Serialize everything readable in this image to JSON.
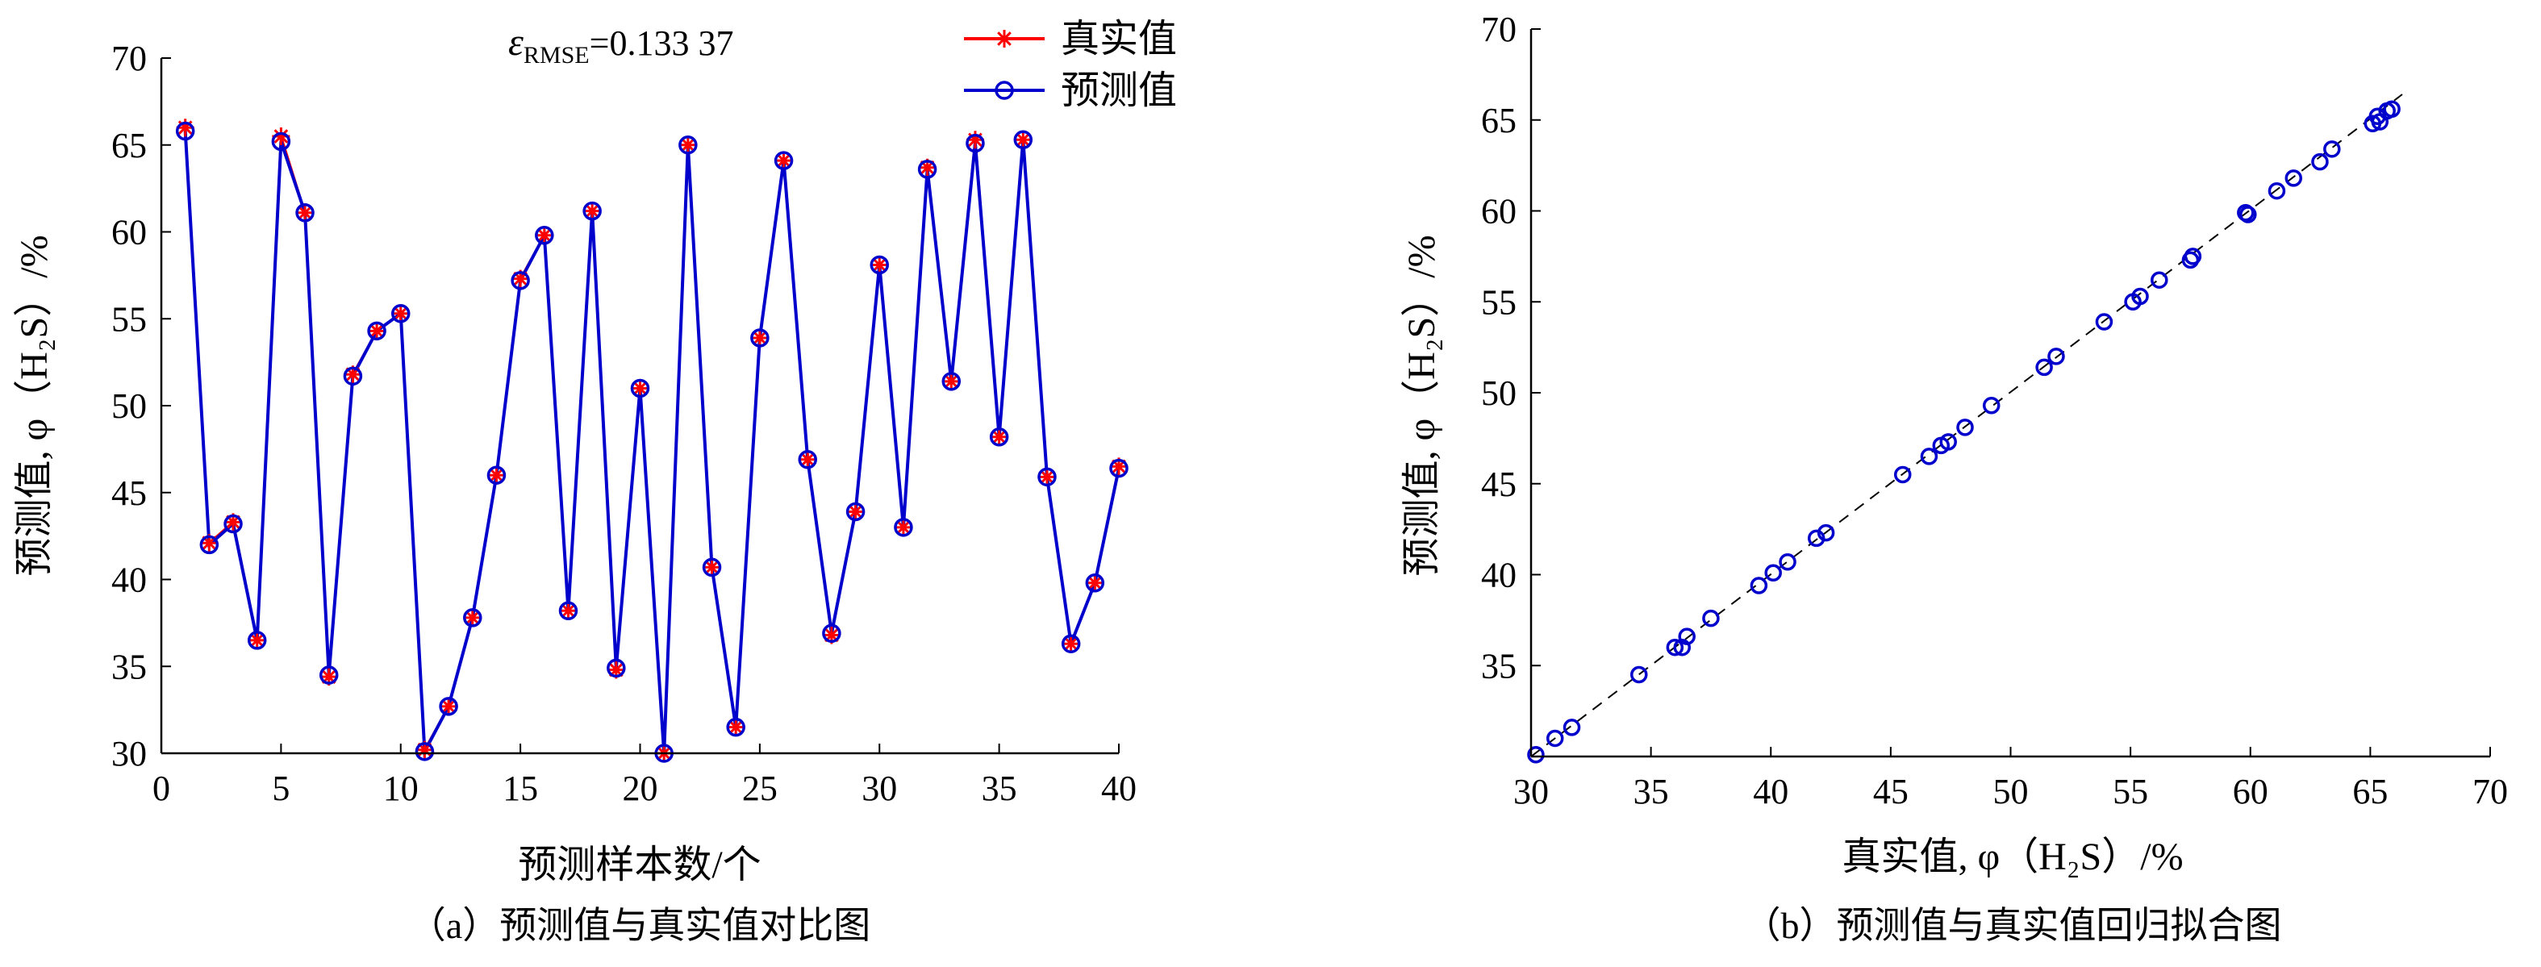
{
  "chart_data": [
    {
      "type": "line",
      "caption": "（a）预测值与真实值对比图",
      "xlabel": "预测样本数/个",
      "ylabel": "预测值, φ（H₂S）/%",
      "annotation": "εRMSE=0.133 37",
      "xlim": [
        0,
        40
      ],
      "ylim": [
        30,
        70
      ],
      "x_ticks": [
        "0",
        "5",
        "10",
        "15",
        "20",
        "25",
        "30",
        "35",
        "40"
      ],
      "y_ticks": [
        "30",
        "35",
        "40",
        "45",
        "50",
        "55",
        "60",
        "65",
        "70"
      ],
      "legend_position": "top-right",
      "x": [
        1,
        2,
        3,
        4,
        5,
        6,
        7,
        8,
        9,
        10,
        11,
        12,
        13,
        14,
        15,
        16,
        17,
        18,
        19,
        20,
        21,
        22,
        23,
        24,
        25,
        26,
        27,
        28,
        29,
        30,
        31,
        32,
        33,
        34,
        35,
        36,
        37,
        38,
        39,
        40
      ],
      "series": [
        {
          "name": "真实值",
          "color": "#ff0000",
          "marker": "star",
          "values": [
            66.0,
            42.1,
            43.3,
            36.5,
            65.5,
            61.1,
            34.4,
            51.8,
            54.3,
            55.3,
            30.2,
            32.7,
            37.8,
            46.0,
            57.3,
            59.8,
            38.2,
            61.2,
            34.8,
            51.0,
            30.0,
            65.0,
            40.7,
            31.5,
            53.9,
            64.1,
            46.9,
            36.8,
            43.9,
            58.1,
            43.0,
            63.7,
            51.4,
            65.3,
            48.2,
            65.3,
            45.9,
            36.3,
            39.8,
            46.5
          ]
        },
        {
          "name": "预测值",
          "color": "#0000cc",
          "marker": "circle",
          "values": [
            65.8,
            42.0,
            43.2,
            36.5,
            65.2,
            61.1,
            34.5,
            51.7,
            54.3,
            55.3,
            30.1,
            32.7,
            37.8,
            46.0,
            57.2,
            59.8,
            38.2,
            61.2,
            34.9,
            51.0,
            30.0,
            65.0,
            40.7,
            31.5,
            53.9,
            64.1,
            46.9,
            36.9,
            43.9,
            58.1,
            43.0,
            63.6,
            51.4,
            65.1,
            48.2,
            65.3,
            45.9,
            36.3,
            39.8,
            46.4
          ]
        }
      ]
    },
    {
      "type": "scatter",
      "caption": "（b）预测值与真实值回归拟合图",
      "xlabel": "真实值, φ（H₂S）/%",
      "ylabel": "预测值, φ（H₂S）/%",
      "xlim": [
        30,
        70
      ],
      "ylim": [
        30,
        70
      ],
      "x_ticks": [
        "30",
        "35",
        "40",
        "45",
        "50",
        "55",
        "60",
        "65",
        "70"
      ],
      "y_ticks": [
        "35",
        "40",
        "45",
        "50",
        "55",
        "60",
        "65",
        "70"
      ],
      "reference_line": "y = x (dashed)",
      "color": "#0000cc",
      "points": [
        [
          30.2,
          30.1
        ],
        [
          31.0,
          31.0
        ],
        [
          31.7,
          31.6
        ],
        [
          34.5,
          34.5
        ],
        [
          36.0,
          36.0
        ],
        [
          36.3,
          36.0
        ],
        [
          36.5,
          36.6
        ],
        [
          37.5,
          37.6
        ],
        [
          39.5,
          39.4
        ],
        [
          40.1,
          40.1
        ],
        [
          40.7,
          40.7
        ],
        [
          41.9,
          42.0
        ],
        [
          42.3,
          42.3
        ],
        [
          45.5,
          45.5
        ],
        [
          46.6,
          46.5
        ],
        [
          47.1,
          47.1
        ],
        [
          47.4,
          47.3
        ],
        [
          48.1,
          48.1
        ],
        [
          49.2,
          49.3
        ],
        [
          51.4,
          51.4
        ],
        [
          51.9,
          52.0
        ],
        [
          53.9,
          53.9
        ],
        [
          55.1,
          55.0
        ],
        [
          55.4,
          55.3
        ],
        [
          56.2,
          56.2
        ],
        [
          57.5,
          57.3
        ],
        [
          57.6,
          57.5
        ],
        [
          59.8,
          59.9
        ],
        [
          59.9,
          59.8
        ],
        [
          61.1,
          61.1
        ],
        [
          61.8,
          61.8
        ],
        [
          62.9,
          62.7
        ],
        [
          63.4,
          63.4
        ],
        [
          65.1,
          64.8
        ],
        [
          65.3,
          65.2
        ],
        [
          65.4,
          64.9
        ],
        [
          65.7,
          65.5
        ],
        [
          65.9,
          65.6
        ]
      ]
    }
  ]
}
